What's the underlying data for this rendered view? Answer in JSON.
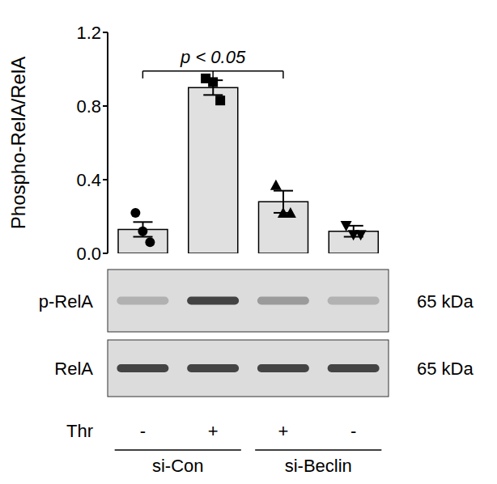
{
  "chart_data": {
    "type": "bar",
    "y_label": "Phospho-RelA/RelA",
    "categories": [
      null,
      null,
      null,
      null
    ],
    "values": [
      0.13,
      0.9,
      0.28,
      0.12
    ],
    "errors": [
      0.04,
      0.04,
      0.06,
      0.03
    ],
    "points": [
      {
        "marker": "circle",
        "values": [
          0.22,
          0.12,
          0.06
        ]
      },
      {
        "marker": "square",
        "values": [
          0.95,
          0.93,
          0.83
        ]
      },
      {
        "marker": "triangle",
        "values": [
          0.37,
          0.22,
          0.22
        ]
      },
      {
        "marker": "triangle-down",
        "values": [
          0.15,
          0.1,
          0.1
        ]
      }
    ],
    "color": "#e0e0e0",
    "ylim": [
      0,
      1.2
    ],
    "yticks": [
      {
        "value": 0,
        "label": "0.0"
      },
      {
        "value": 0.4,
        "label": "0.4"
      },
      {
        "value": 0.8,
        "label": "0.8"
      },
      {
        "value": 1.2,
        "label": "1.2"
      }
    ],
    "annotations": [
      "p < 0.05"
    ]
  },
  "blot": {
    "rows": [
      {
        "label": "p-RelA",
        "size": "65 kDa"
      },
      {
        "label": "RelA",
        "size": "65 kDa"
      }
    ],
    "treatment_label": "Thr",
    "treatment": [
      "-",
      "+",
      "+",
      "-"
    ],
    "groups": [
      "si-Con",
      "si-Con",
      "si-Beclin",
      "si-Beclin"
    ]
  }
}
